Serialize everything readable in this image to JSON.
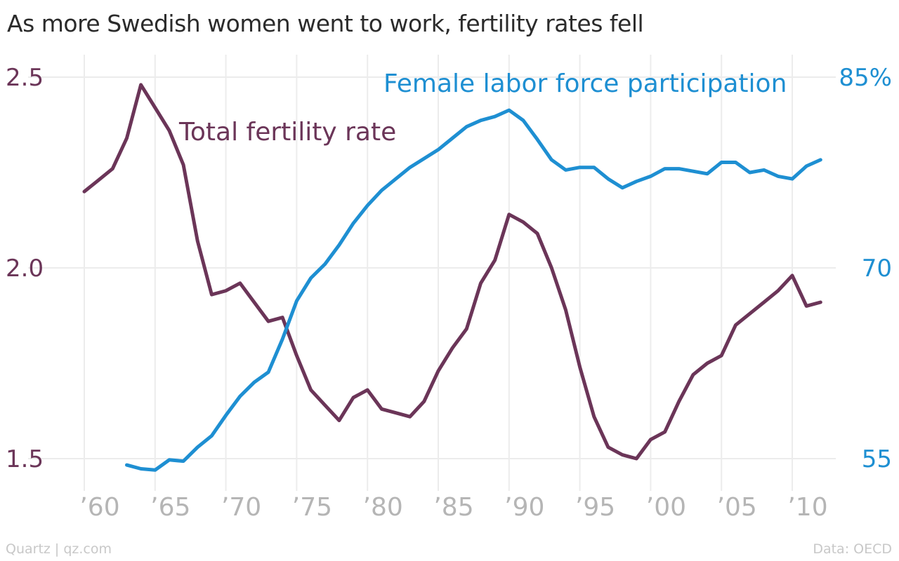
{
  "title": "As more Swedish women went to work, fertility rates fell",
  "footer": {
    "source_left": "Quartz | qz.com",
    "source_right": "Data: OECD"
  },
  "colors": {
    "fertility": "#6b3558",
    "labor": "#1e8fd2",
    "grid": "#ececec",
    "x_tick": "#b5b5b5",
    "title": "#2b2b2b"
  },
  "chart_data": {
    "type": "line",
    "title": "As more Swedish women went to work, fertility rates fell",
    "xlabel": "",
    "ylabel_left": "",
    "ylabel_right": "",
    "xlim": [
      1960,
      2012
    ],
    "x_ticks": [
      1960,
      1965,
      1970,
      1975,
      1980,
      1985,
      1990,
      1995,
      2000,
      2005,
      2010
    ],
    "x_tick_labels": [
      "’60",
      "’65",
      "’70",
      "’75",
      "’80",
      "’85",
      "’90",
      "’95",
      "’00",
      "’05",
      "’10"
    ],
    "y_left": {
      "range": [
        1.5,
        2.5
      ],
      "ticks": [
        1.5,
        2.0,
        2.5
      ],
      "tick_labels": [
        "1.5",
        "2.0",
        "2.5"
      ]
    },
    "y_right": {
      "range": [
        55,
        85
      ],
      "ticks": [
        55,
        70,
        85
      ],
      "tick_labels": [
        "55",
        "70",
        "85%"
      ]
    },
    "grid": true,
    "series": [
      {
        "name": "Total fertility rate",
        "axis": "left",
        "x": [
          1960,
          1961,
          1962,
          1963,
          1964,
          1965,
          1966,
          1967,
          1968,
          1969,
          1970,
          1971,
          1972,
          1973,
          1974,
          1975,
          1976,
          1977,
          1978,
          1979,
          1980,
          1981,
          1982,
          1983,
          1984,
          1985,
          1986,
          1987,
          1988,
          1989,
          1990,
          1991,
          1992,
          1993,
          1994,
          1995,
          1996,
          1997,
          1998,
          1999,
          2000,
          2001,
          2002,
          2003,
          2004,
          2005,
          2006,
          2007,
          2008,
          2009,
          2010,
          2011,
          2012
        ],
        "values": [
          2.2,
          2.23,
          2.26,
          2.34,
          2.48,
          2.42,
          2.36,
          2.27,
          2.07,
          1.93,
          1.94,
          1.96,
          1.91,
          1.86,
          1.87,
          1.77,
          1.68,
          1.64,
          1.6,
          1.66,
          1.68,
          1.63,
          1.62,
          1.61,
          1.65,
          1.73,
          1.79,
          1.84,
          1.96,
          2.02,
          2.14,
          2.12,
          2.09,
          2.0,
          1.89,
          1.74,
          1.61,
          1.53,
          1.51,
          1.5,
          1.55,
          1.57,
          1.65,
          1.72,
          1.75,
          1.77,
          1.85,
          1.88,
          1.91,
          1.94,
          1.98,
          1.9,
          1.91
        ]
      },
      {
        "name": "Female labor force participation",
        "axis": "right",
        "x": [
          1963,
          1964,
          1965,
          1966,
          1967,
          1968,
          1969,
          1970,
          1971,
          1972,
          1973,
          1974,
          1975,
          1976,
          1977,
          1978,
          1979,
          1980,
          1981,
          1982,
          1983,
          1984,
          1985,
          1986,
          1987,
          1988,
          1989,
          1990,
          1991,
          1992,
          1993,
          1994,
          1995,
          1996,
          1997,
          1998,
          1999,
          2000,
          2001,
          2002,
          2003,
          2004,
          2005,
          2006,
          2007,
          2008,
          2009,
          2010,
          2011,
          2012
        ],
        "values": [
          54.5,
          54.2,
          54.1,
          54.9,
          54.8,
          55.9,
          56.8,
          58.4,
          59.9,
          61.0,
          61.8,
          64.4,
          67.4,
          69.2,
          70.3,
          71.8,
          73.5,
          74.9,
          76.1,
          77.0,
          77.9,
          78.6,
          79.3,
          80.2,
          81.1,
          81.6,
          81.9,
          82.4,
          81.6,
          80.1,
          78.5,
          77.7,
          77.9,
          77.9,
          77.0,
          76.3,
          76.8,
          77.2,
          77.8,
          77.8,
          77.6,
          77.4,
          78.3,
          78.3,
          77.5,
          77.7,
          77.2,
          77.0,
          78.0,
          78.5
        ]
      }
    ],
    "annotations": {
      "fertility_label": "Total fertility rate",
      "labor_label": "Female labor force participation"
    }
  }
}
